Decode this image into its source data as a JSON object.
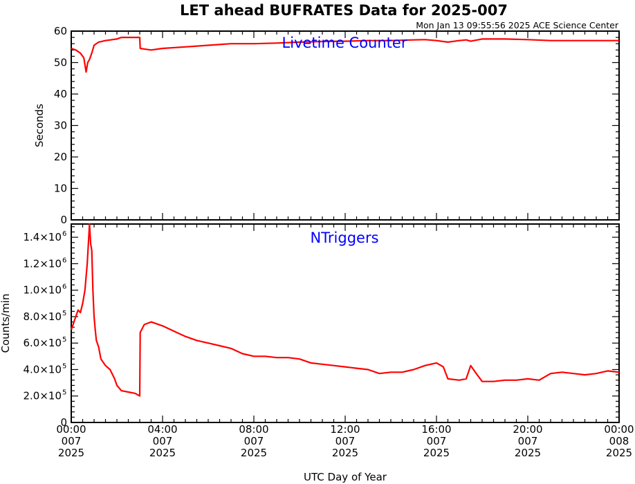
{
  "title": "LET ahead BUFRATES Data for 2025-007",
  "timestamp": "Mon Jan 13 09:55:56 2025 ACE Science Center",
  "xlabel": "UTC Day of Year",
  "x_ticks": [
    {
      "hour": 0,
      "time": "00:00",
      "doy": "007",
      "year": "2025"
    },
    {
      "hour": 4,
      "time": "04:00",
      "doy": "007",
      "year": "2025"
    },
    {
      "hour": 8,
      "time": "08:00",
      "doy": "007",
      "year": "2025"
    },
    {
      "hour": 12,
      "time": "12:00",
      "doy": "007",
      "year": "2025"
    },
    {
      "hour": 16,
      "time": "16:00",
      "doy": "007",
      "year": "2025"
    },
    {
      "hour": 20,
      "time": "20:00",
      "doy": "007",
      "year": "2025"
    },
    {
      "hour": 24,
      "time": "00:00",
      "doy": "008",
      "year": "2025"
    }
  ],
  "colors": {
    "line": "#ff0000",
    "label": "#0000ff",
    "axis": "#000000"
  },
  "chart_data": [
    {
      "type": "line",
      "label": "Livetime Counter",
      "ylabel": "Seconds",
      "xlim": [
        0,
        24
      ],
      "ylim": [
        0,
        60
      ],
      "y_ticks": [
        0,
        10,
        20,
        30,
        40,
        50,
        60
      ],
      "y_tick_labels": [
        "0",
        "10",
        "20",
        "30",
        "40",
        "50",
        "60"
      ],
      "series": [
        {
          "x": [
            0,
            0.2,
            0.4,
            0.55,
            0.65,
            0.72,
            0.8,
            0.9,
            1.0,
            1.2,
            1.5,
            2.0,
            2.2,
            2.5,
            3.0,
            3.02,
            3.2,
            3.5,
            4.0,
            5.0,
            6.0,
            7.0,
            8.0,
            9.0,
            10.0,
            11.0,
            12.0,
            13.0,
            14.0,
            15.0,
            15.5,
            16.0,
            16.5,
            17.0,
            17.3,
            17.5,
            18.0,
            19.0,
            20.0,
            21.0,
            22.0,
            23.0,
            24.0
          ],
          "y": [
            54.5,
            54,
            53,
            51.5,
            47,
            50,
            51,
            53,
            55.5,
            56.5,
            57,
            57.5,
            58,
            58,
            58,
            54.5,
            54.3,
            54,
            54.5,
            55,
            55.5,
            56,
            56,
            56.2,
            56.5,
            56.7,
            56.8,
            57,
            57,
            57.2,
            57.3,
            57,
            56.5,
            57,
            57.2,
            56.8,
            57.5,
            57.5,
            57.3,
            57,
            57,
            57,
            57
          ]
        }
      ]
    },
    {
      "type": "line",
      "label": "NTriggers",
      "ylabel": "Counts/min",
      "xlim": [
        0,
        24
      ],
      "ylim": [
        0,
        1500000
      ],
      "y_ticks": [
        0,
        200000,
        400000,
        600000,
        800000,
        1000000,
        1200000,
        1400000
      ],
      "y_tick_labels": [
        {
          "mant": "0",
          "exp": ""
        },
        {
          "mant": "2.0×10",
          "exp": "5"
        },
        {
          "mant": "4.0×10",
          "exp": "5"
        },
        {
          "mant": "6.0×10",
          "exp": "5"
        },
        {
          "mant": "8.0×10",
          "exp": "5"
        },
        {
          "mant": "1.0×10",
          "exp": "6"
        },
        {
          "mant": "1.2×10",
          "exp": "6"
        },
        {
          "mant": "1.4×10",
          "exp": "6"
        }
      ],
      "series": [
        {
          "x": [
            0,
            0.1,
            0.2,
            0.3,
            0.4,
            0.5,
            0.6,
            0.7,
            0.8,
            0.85,
            0.9,
            0.95,
            1.0,
            1.05,
            1.1,
            1.2,
            1.3,
            1.5,
            1.7,
            1.9,
            2.0,
            2.2,
            2.5,
            2.8,
            3.0,
            3.02,
            3.2,
            3.5,
            4.0,
            4.5,
            5.0,
            5.5,
            6.0,
            6.5,
            7.0,
            7.5,
            8.0,
            8.5,
            9.0,
            9.5,
            10.0,
            10.5,
            11.0,
            11.5,
            12.0,
            12.5,
            13.0,
            13.5,
            14.0,
            14.5,
            15.0,
            15.5,
            16.0,
            16.3,
            16.5,
            17.0,
            17.3,
            17.5,
            17.7,
            18.0,
            18.5,
            19.0,
            19.5,
            20.0,
            20.5,
            21.0,
            21.5,
            22.0,
            22.5,
            23.0,
            23.5,
            24.0
          ],
          "y": [
            700000,
            750000,
            800000,
            850000,
            830000,
            900000,
            1000000,
            1200000,
            1500000,
            1350000,
            1300000,
            1000000,
            800000,
            700000,
            620000,
            570000,
            480000,
            430000,
            400000,
            330000,
            280000,
            240000,
            230000,
            220000,
            200000,
            680000,
            740000,
            760000,
            730000,
            690000,
            650000,
            620000,
            600000,
            580000,
            560000,
            520000,
            500000,
            500000,
            490000,
            490000,
            480000,
            450000,
            440000,
            430000,
            420000,
            410000,
            400000,
            370000,
            380000,
            380000,
            400000,
            430000,
            450000,
            420000,
            330000,
            320000,
            330000,
            430000,
            380000,
            310000,
            310000,
            320000,
            320000,
            330000,
            320000,
            370000,
            380000,
            370000,
            360000,
            370000,
            390000,
            380000
          ]
        }
      ]
    }
  ]
}
